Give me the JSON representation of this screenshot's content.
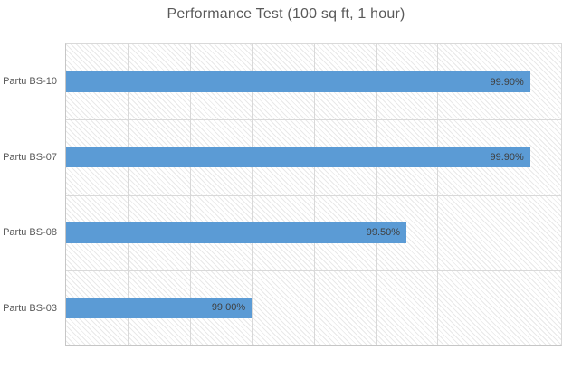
{
  "chart_data": {
    "type": "bar",
    "orientation": "horizontal",
    "title": "Performance Test (100 sq ft, 1 hour)",
    "categories": [
      "Partu BS-10",
      "Partu BS-07",
      "Partu BS-08",
      "Partu BS-03"
    ],
    "values": [
      99.9,
      99.9,
      99.5,
      99.0
    ],
    "data_labels": [
      "99.90%",
      "99.90%",
      "99.50%",
      "99.00%"
    ],
    "data_label_position": "inside-end",
    "xlim": [
      98.4,
      100.0
    ],
    "x_gridline_step": 0.2,
    "grid": true,
    "legend": "none",
    "x_tick_labels_visible": false,
    "plot_pattern": "light-diagonal-hatch",
    "colors": {
      "bar": "#5b9bd5",
      "title_text": "#595959",
      "category_text": "#595959",
      "data_label_text": "#3f3f3f",
      "gridline": "#d9d9d9",
      "axis_line": "#c6c6c6",
      "background": "#ffffff"
    }
  }
}
